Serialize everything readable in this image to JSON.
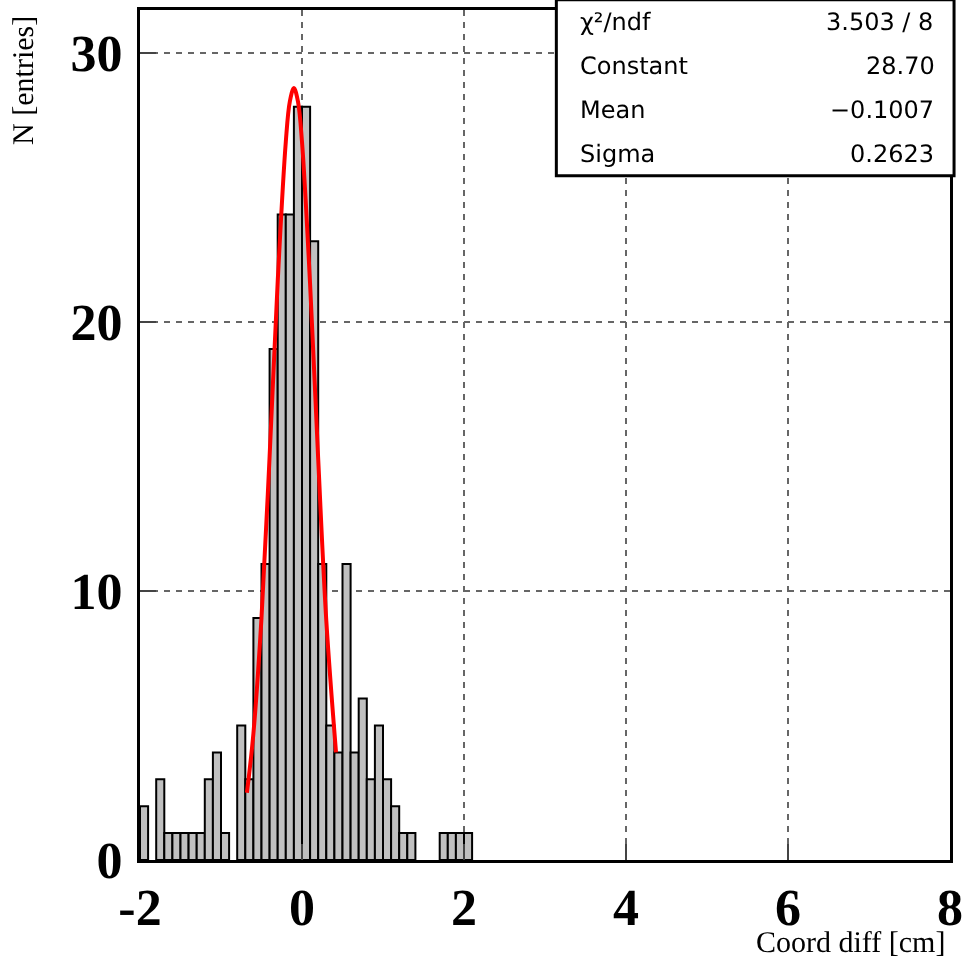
{
  "chart_data": {
    "type": "histogram",
    "xlabel": "Coord diff [cm]",
    "ylabel": "N [entries]",
    "bins": [
      -2.0,
      -1.9,
      -1.8,
      -1.7,
      -1.6,
      -1.5,
      -1.4,
      -1.3,
      -1.2,
      -1.1,
      -1.0,
      -0.9,
      -0.8,
      -0.7,
      -0.6,
      -0.5,
      -0.4,
      -0.3,
      -0.2,
      -0.1,
      0.0,
      0.1,
      0.2,
      0.3,
      0.4,
      0.5,
      0.6,
      0.7,
      0.8,
      0.9,
      1.0,
      1.1,
      1.2,
      1.3,
      1.4,
      1.5,
      1.6,
      1.7,
      1.8,
      1.9,
      2.0,
      2.1
    ],
    "values": [
      2,
      0,
      3,
      1,
      1,
      1,
      1,
      1,
      3,
      4,
      1,
      0,
      5,
      3,
      9,
      11,
      19,
      24,
      24,
      28,
      28,
      23,
      11,
      5,
      4,
      11,
      4,
      6,
      3,
      5,
      3,
      2,
      1,
      1,
      0,
      0,
      0,
      1,
      1,
      1,
      1
    ],
    "color": "#c0c0c0",
    "series": [
      {
        "type": "line",
        "color": "#ff0000",
        "x": [
          -0.68,
          -0.6,
          -0.5,
          -0.4,
          -0.3,
          -0.2,
          -0.15,
          -0.1,
          -0.05,
          0.0,
          0.1,
          0.2,
          0.3,
          0.42
        ],
        "values": [
          2.5,
          4.7,
          9.0,
          15.0,
          21.5,
          26.7,
          28.2,
          28.7,
          28.2,
          26.7,
          21.4,
          14.9,
          8.9,
          4.0
        ]
      }
    ],
    "xlim": [
      -2,
      8
    ],
    "xticks": [
      -2,
      0,
      2,
      4,
      6,
      8
    ],
    "ylim": [
      0,
      31.6
    ],
    "yticks": [
      0,
      10,
      20,
      30
    ],
    "grid": true,
    "annotations": [
      "χ²/ndf 3.503 / 8",
      "Constant 28.70",
      "Mean −0.1007",
      "Sigma 0.2623"
    ]
  }
}
